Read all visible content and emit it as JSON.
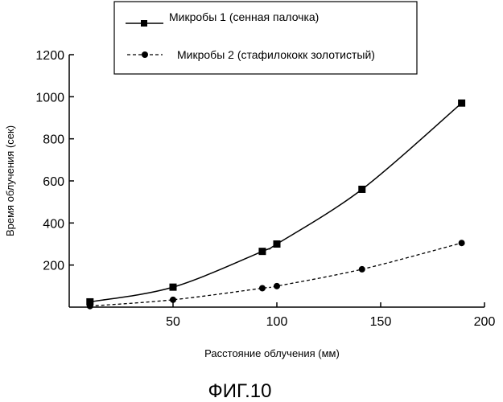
{
  "chart_data": {
    "type": "line",
    "xlabel": "Расстояние облучения (мм)",
    "ylabel": "Время облучения (сек)",
    "xlim": [
      0,
      200
    ],
    "ylim": [
      0,
      1200
    ],
    "x_ticks": [
      50,
      100,
      150,
      200
    ],
    "y_ticks": [
      200,
      400,
      600,
      800,
      1000,
      1200
    ],
    "grid": false,
    "legend_position": "top",
    "series": [
      {
        "name": "Микробы 1 (сенная палочка)",
        "marker": "square",
        "line_style": "solid",
        "x": [
          10,
          50,
          93,
          100,
          141,
          189
        ],
        "y": [
          25,
          95,
          265,
          300,
          560,
          970
        ]
      },
      {
        "name": "Микробы 2 (стафилококк золотистый)",
        "marker": "circle",
        "line_style": "dashed",
        "x": [
          10,
          50,
          93,
          100,
          141,
          189
        ],
        "y": [
          5,
          35,
          90,
          100,
          180,
          305
        ]
      }
    ]
  },
  "caption": "ФИГ.10"
}
